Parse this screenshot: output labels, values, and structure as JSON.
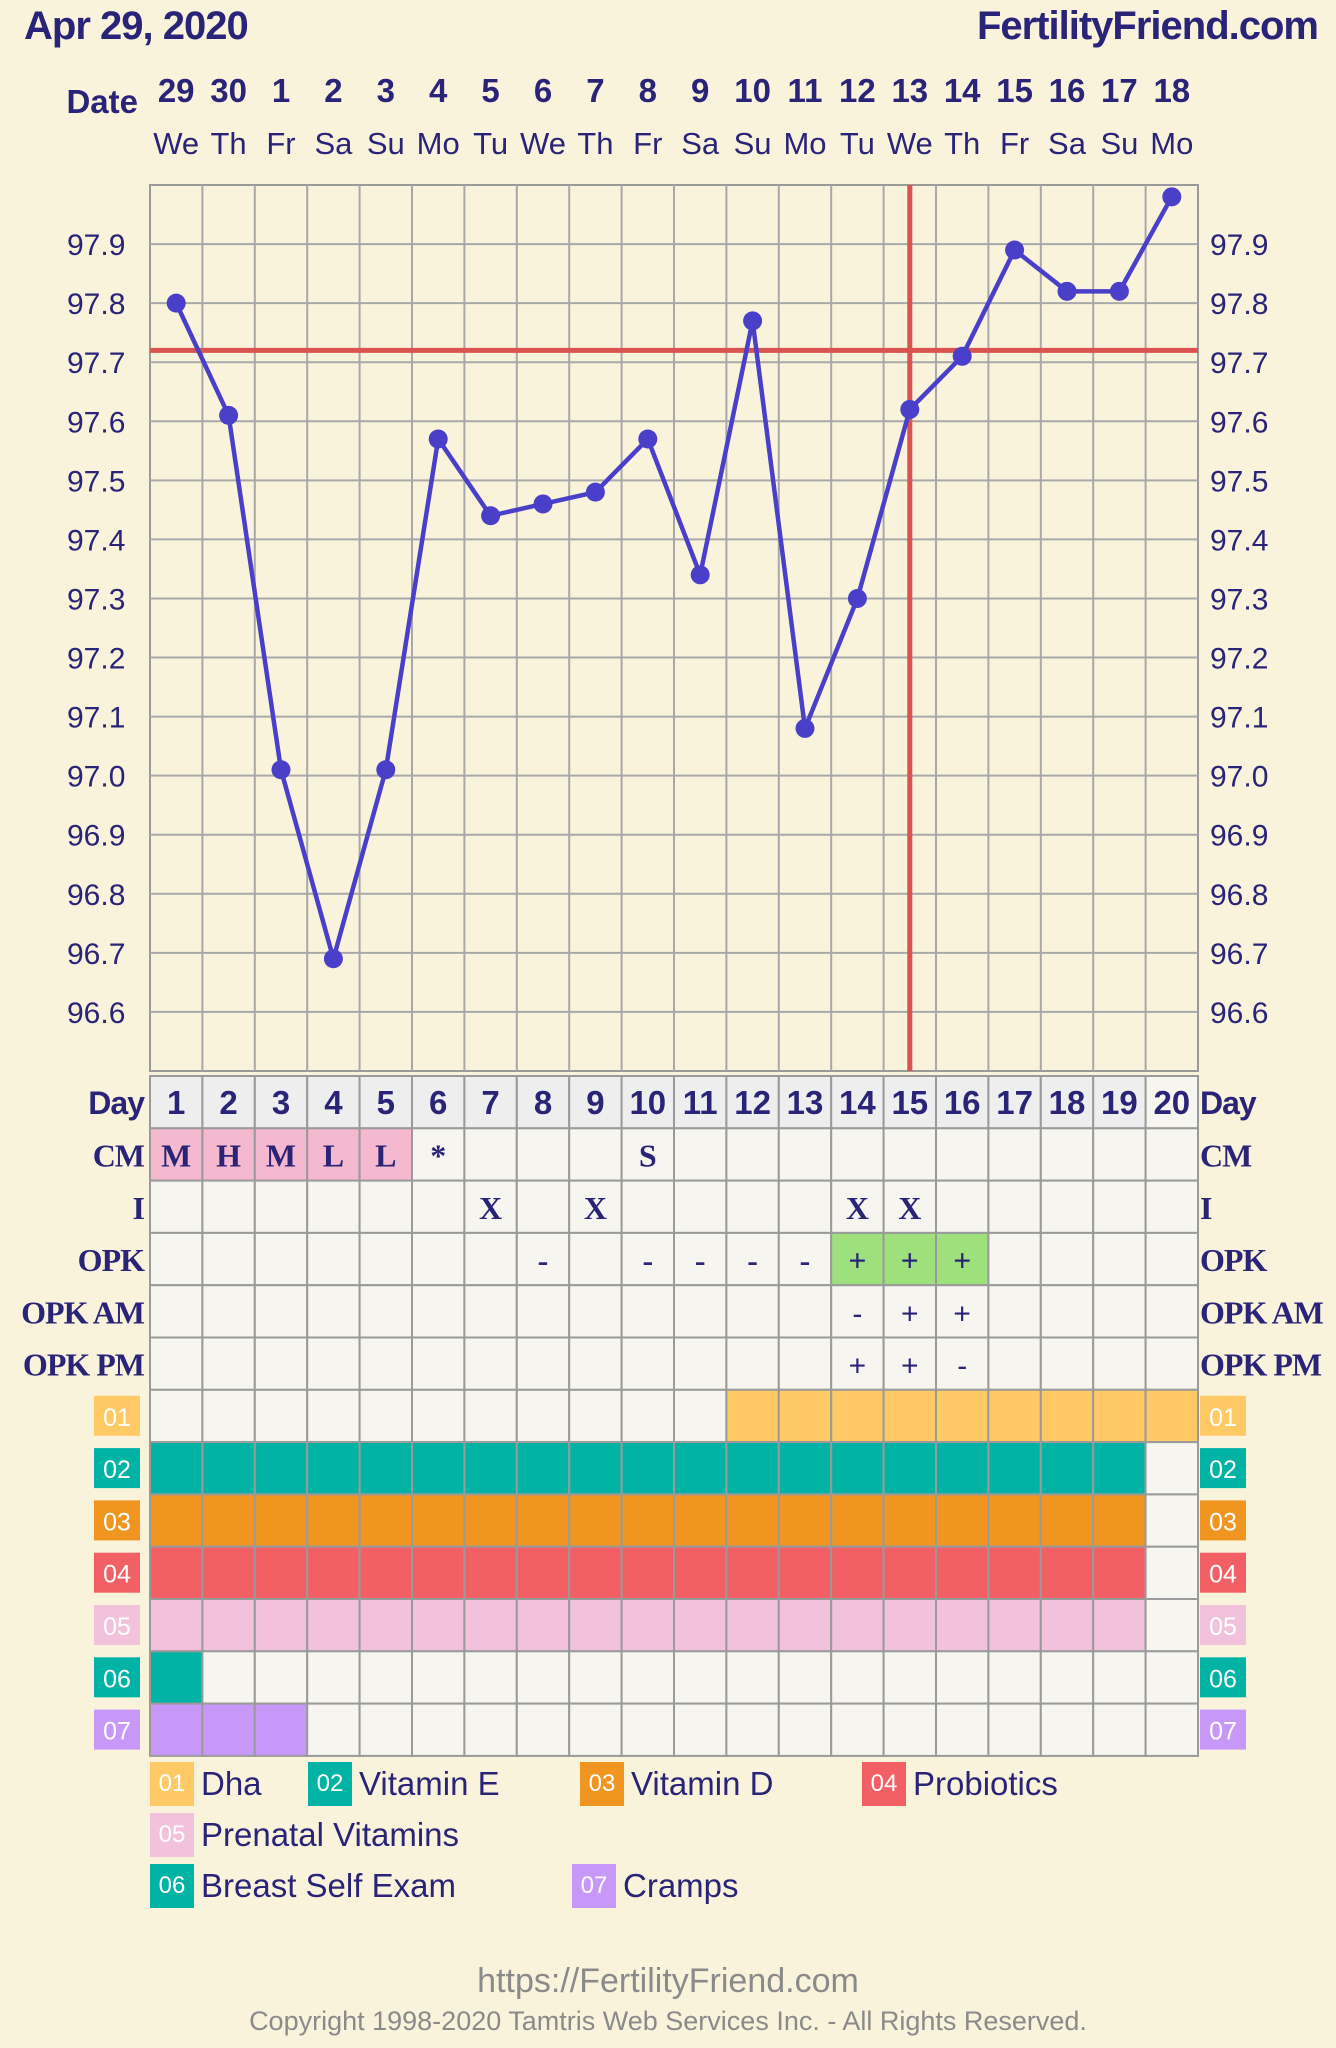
{
  "header": {
    "chart_date": "Apr 29, 2020",
    "site": "FertilityFriend.com"
  },
  "row_labels": {
    "date": "Date",
    "day": "Day",
    "cm": "CM",
    "intercourse": "I",
    "opk": "OPK",
    "opk_am": "OPK AM",
    "opk_pm": "OPK PM"
  },
  "days": [
    {
      "date": "29",
      "dow": "We",
      "cycle_day": "1",
      "temp": 97.8,
      "cm": "M",
      "i": "",
      "opk": "",
      "opk_am": "",
      "opk_pm": ""
    },
    {
      "date": "30",
      "dow": "Th",
      "cycle_day": "2",
      "temp": 97.61,
      "cm": "H",
      "i": "",
      "opk": "",
      "opk_am": "",
      "opk_pm": ""
    },
    {
      "date": "1",
      "dow": "Fr",
      "cycle_day": "3",
      "temp": 97.01,
      "cm": "M",
      "i": "",
      "opk": "",
      "opk_am": "",
      "opk_pm": ""
    },
    {
      "date": "2",
      "dow": "Sa",
      "cycle_day": "4",
      "temp": 96.69,
      "cm": "L",
      "i": "",
      "opk": "",
      "opk_am": "",
      "opk_pm": ""
    },
    {
      "date": "3",
      "dow": "Su",
      "cycle_day": "5",
      "temp": 97.01,
      "cm": "L",
      "i": "",
      "opk": "",
      "opk_am": "",
      "opk_pm": ""
    },
    {
      "date": "4",
      "dow": "Mo",
      "cycle_day": "6",
      "temp": 97.57,
      "cm": "*",
      "i": "",
      "opk": "",
      "opk_am": "",
      "opk_pm": ""
    },
    {
      "date": "5",
      "dow": "Tu",
      "cycle_day": "7",
      "temp": 97.44,
      "cm": "",
      "i": "X",
      "opk": "",
      "opk_am": "",
      "opk_pm": ""
    },
    {
      "date": "6",
      "dow": "We",
      "cycle_day": "8",
      "temp": 97.46,
      "cm": "",
      "i": "",
      "opk": "-",
      "opk_am": "",
      "opk_pm": ""
    },
    {
      "date": "7",
      "dow": "Th",
      "cycle_day": "9",
      "temp": 97.48,
      "cm": "",
      "i": "X",
      "opk": "",
      "opk_am": "",
      "opk_pm": ""
    },
    {
      "date": "8",
      "dow": "Fr",
      "cycle_day": "10",
      "temp": 97.57,
      "cm": "S",
      "i": "",
      "opk": "-",
      "opk_am": "",
      "opk_pm": ""
    },
    {
      "date": "9",
      "dow": "Sa",
      "cycle_day": "11",
      "temp": 97.34,
      "cm": "",
      "i": "",
      "opk": "-",
      "opk_am": "",
      "opk_pm": ""
    },
    {
      "date": "10",
      "dow": "Su",
      "cycle_day": "12",
      "temp": 97.77,
      "cm": "",
      "i": "",
      "opk": "-",
      "opk_am": "",
      "opk_pm": ""
    },
    {
      "date": "11",
      "dow": "Mo",
      "cycle_day": "13",
      "temp": 97.08,
      "cm": "",
      "i": "",
      "opk": "-",
      "opk_am": "",
      "opk_pm": ""
    },
    {
      "date": "12",
      "dow": "Tu",
      "cycle_day": "14",
      "temp": 97.3,
      "cm": "",
      "i": "X",
      "opk": "+",
      "opk_am": "-",
      "opk_pm": "+"
    },
    {
      "date": "13",
      "dow": "We",
      "cycle_day": "15",
      "temp": 97.62,
      "cm": "",
      "i": "X",
      "opk": "+",
      "opk_am": "+",
      "opk_pm": "+"
    },
    {
      "date": "14",
      "dow": "Th",
      "cycle_day": "16",
      "temp": 97.71,
      "cm": "",
      "i": "",
      "opk": "+",
      "opk_am": "+",
      "opk_pm": "-"
    },
    {
      "date": "15",
      "dow": "Fr",
      "cycle_day": "17",
      "temp": 97.89,
      "cm": "",
      "i": "",
      "opk": "",
      "opk_am": "",
      "opk_pm": ""
    },
    {
      "date": "16",
      "dow": "Sa",
      "cycle_day": "18",
      "temp": 97.82,
      "cm": "",
      "i": "",
      "opk": "",
      "opk_am": "",
      "opk_pm": ""
    },
    {
      "date": "17",
      "dow": "Su",
      "cycle_day": "19",
      "temp": 97.82,
      "cm": "",
      "i": "",
      "opk": "",
      "opk_am": "",
      "opk_pm": ""
    },
    {
      "date": "18",
      "dow": "Mo",
      "cycle_day": "20",
      "temp": 97.98,
      "cm": "",
      "i": "",
      "opk": "",
      "opk_am": "",
      "opk_pm": ""
    }
  ],
  "chart_data": {
    "type": "line",
    "x": [
      "1",
      "2",
      "3",
      "4",
      "5",
      "6",
      "7",
      "8",
      "9",
      "10",
      "11",
      "12",
      "13",
      "14",
      "15",
      "16",
      "17",
      "18",
      "19",
      "20"
    ],
    "series": [
      {
        "values": [
          97.8,
          97.61,
          97.01,
          96.69,
          97.01,
          97.57,
          97.44,
          97.46,
          97.48,
          97.57,
          97.34,
          97.77,
          97.08,
          97.3,
          97.62,
          97.71,
          97.89,
          97.82,
          97.82,
          97.98
        ]
      }
    ],
    "yticks": [
      "96.6",
      "96.7",
      "96.8",
      "96.9",
      "97.0",
      "97.1",
      "97.2",
      "97.3",
      "97.4",
      "97.5",
      "97.6",
      "97.7",
      "97.8",
      "97.9"
    ],
    "ylim": [
      96.5,
      98.0
    ],
    "coverline": 97.72,
    "ovulation_day": "15",
    "grid": true,
    "line_color": "#4a3fc8",
    "marker_line_color": "#d9534f"
  },
  "tracks": [
    {
      "code": "01",
      "name": "Dha",
      "color": "#ffc966",
      "days": [
        12,
        20
      ]
    },
    {
      "code": "02",
      "name": "Vitamin E",
      "color": "#00b3a4",
      "days": [
        1,
        19
      ]
    },
    {
      "code": "03",
      "name": "Vitamin D",
      "color": "#f0951f",
      "days": [
        1,
        19
      ]
    },
    {
      "code": "04",
      "name": "Probiotics",
      "color": "#f26065",
      "days": [
        1,
        19
      ]
    },
    {
      "code": "05",
      "name": "Prenatal Vitamins",
      "color": "#f2c2dc",
      "days": [
        1,
        19
      ]
    },
    {
      "code": "06",
      "name": "Breast Self Exam",
      "color": "#00b3a4",
      "days": [
        1,
        1
      ]
    },
    {
      "code": "07",
      "name": "Cramps",
      "color": "#c898f8",
      "days": [
        1,
        3
      ]
    }
  ],
  "colors": {
    "cm_fill": "#f4b8cf",
    "opk_positive_fill": "#9ee07c",
    "cell_fill": "#f6f5ef",
    "grid": "#9a9a9a"
  },
  "footer": {
    "url": "https://FertilityFriend.com",
    "copyright": "Copyright 1998-2020 Tamtris Web Services Inc. - All Rights Reserved."
  }
}
